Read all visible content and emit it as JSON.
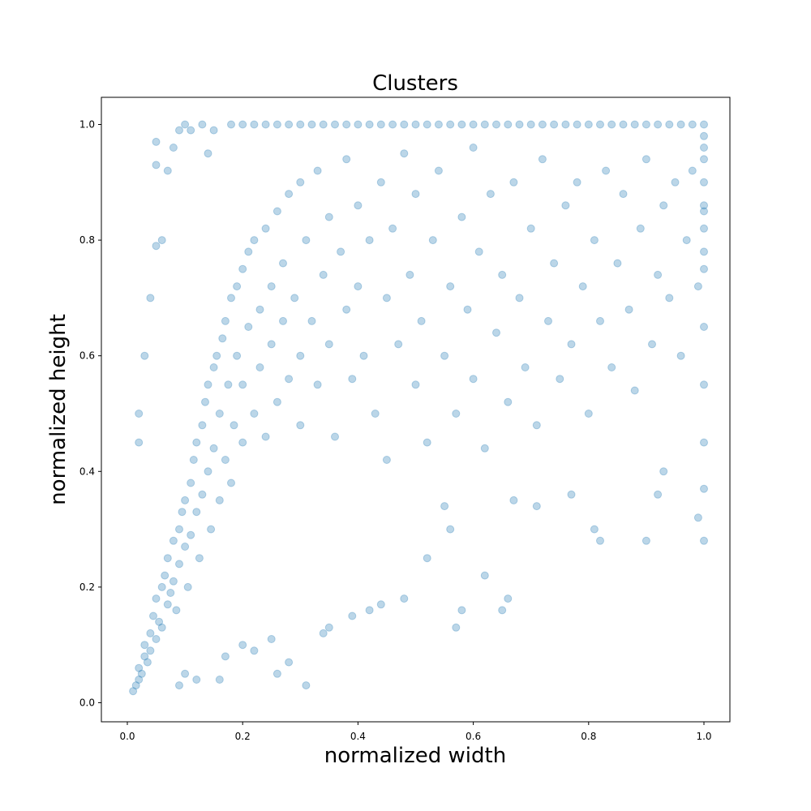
{
  "chart_data": {
    "type": "scatter",
    "title": "Clusters",
    "xlabel": "normalized width",
    "ylabel": "normalized height",
    "xlim": [
      -0.045,
      1.045
    ],
    "ylim": [
      -0.033,
      1.047
    ],
    "xticks": [
      0.0,
      0.2,
      0.4,
      0.6,
      0.8,
      1.0
    ],
    "yticks": [
      0.0,
      0.2,
      0.4,
      0.6,
      0.8,
      1.0
    ],
    "xtick_labels": [
      "0.0",
      "0.2",
      "0.4",
      "0.6",
      "0.8",
      "1.0"
    ],
    "ytick_labels": [
      "0.0",
      "0.2",
      "0.4",
      "0.6",
      "0.8",
      "1.0"
    ],
    "grid": false,
    "marker_color": "#1f77b4",
    "marker_alpha": 0.3,
    "series": [
      {
        "points": [
          [
            0.01,
            0.02
          ],
          [
            0.015,
            0.03
          ],
          [
            0.02,
            0.04
          ],
          [
            0.02,
            0.06
          ],
          [
            0.025,
            0.05
          ],
          [
            0.03,
            0.08
          ],
          [
            0.03,
            0.1
          ],
          [
            0.035,
            0.07
          ],
          [
            0.04,
            0.12
          ],
          [
            0.04,
            0.09
          ],
          [
            0.045,
            0.15
          ],
          [
            0.05,
            0.11
          ],
          [
            0.05,
            0.18
          ],
          [
            0.055,
            0.14
          ],
          [
            0.06,
            0.2
          ],
          [
            0.06,
            0.13
          ],
          [
            0.065,
            0.22
          ],
          [
            0.07,
            0.17
          ],
          [
            0.07,
            0.25
          ],
          [
            0.075,
            0.19
          ],
          [
            0.08,
            0.28
          ],
          [
            0.08,
            0.21
          ],
          [
            0.085,
            0.16
          ],
          [
            0.09,
            0.3
          ],
          [
            0.09,
            0.24
          ],
          [
            0.095,
            0.33
          ],
          [
            0.1,
            0.27
          ],
          [
            0.1,
            0.35
          ],
          [
            0.105,
            0.2
          ],
          [
            0.11,
            0.38
          ],
          [
            0.11,
            0.29
          ],
          [
            0.115,
            0.42
          ],
          [
            0.12,
            0.33
          ],
          [
            0.12,
            0.45
          ],
          [
            0.125,
            0.25
          ],
          [
            0.13,
            0.48
          ],
          [
            0.13,
            0.36
          ],
          [
            0.135,
            0.52
          ],
          [
            0.14,
            0.4
          ],
          [
            0.14,
            0.55
          ],
          [
            0.145,
            0.3
          ],
          [
            0.15,
            0.58
          ],
          [
            0.15,
            0.44
          ],
          [
            0.155,
            0.6
          ],
          [
            0.16,
            0.35
          ],
          [
            0.16,
            0.5
          ],
          [
            0.165,
            0.63
          ],
          [
            0.17,
            0.42
          ],
          [
            0.17,
            0.66
          ],
          [
            0.175,
            0.55
          ],
          [
            0.18,
            0.7
          ],
          [
            0.18,
            0.38
          ],
          [
            0.185,
            0.48
          ],
          [
            0.19,
            0.72
          ],
          [
            0.19,
            0.6
          ],
          [
            0.2,
            0.75
          ],
          [
            0.2,
            0.45
          ],
          [
            0.2,
            0.55
          ],
          [
            0.21,
            0.78
          ],
          [
            0.21,
            0.65
          ],
          [
            0.22,
            0.5
          ],
          [
            0.22,
            0.8
          ],
          [
            0.23,
            0.68
          ],
          [
            0.23,
            0.58
          ],
          [
            0.24,
            0.82
          ],
          [
            0.24,
            0.46
          ],
          [
            0.25,
            0.72
          ],
          [
            0.25,
            0.62
          ],
          [
            0.26,
            0.85
          ],
          [
            0.26,
            0.52
          ],
          [
            0.27,
            0.76
          ],
          [
            0.27,
            0.66
          ],
          [
            0.28,
            0.88
          ],
          [
            0.28,
            0.56
          ],
          [
            0.29,
            0.7
          ],
          [
            0.3,
            0.9
          ],
          [
            0.3,
            0.6
          ],
          [
            0.3,
            0.48
          ],
          [
            0.31,
            0.8
          ],
          [
            0.32,
            0.66
          ],
          [
            0.33,
            0.92
          ],
          [
            0.33,
            0.55
          ],
          [
            0.34,
            0.74
          ],
          [
            0.35,
            0.84
          ],
          [
            0.35,
            0.62
          ],
          [
            0.36,
            0.46
          ],
          [
            0.37,
            0.78
          ],
          [
            0.38,
            0.94
          ],
          [
            0.38,
            0.68
          ],
          [
            0.39,
            0.56
          ],
          [
            0.4,
            0.86
          ],
          [
            0.4,
            0.72
          ],
          [
            0.41,
            0.6
          ],
          [
            0.42,
            0.8
          ],
          [
            0.43,
            0.5
          ],
          [
            0.44,
            0.9
          ],
          [
            0.45,
            0.7
          ],
          [
            0.45,
            0.42
          ],
          [
            0.46,
            0.82
          ],
          [
            0.47,
            0.62
          ],
          [
            0.48,
            0.95
          ],
          [
            0.49,
            0.74
          ],
          [
            0.5,
            0.55
          ],
          [
            0.5,
            0.88
          ],
          [
            0.51,
            0.66
          ],
          [
            0.52,
            0.45
          ],
          [
            0.53,
            0.8
          ],
          [
            0.54,
            0.92
          ],
          [
            0.55,
            0.6
          ],
          [
            0.56,
            0.72
          ],
          [
            0.57,
            0.5
          ],
          [
            0.58,
            0.84
          ],
          [
            0.59,
            0.68
          ],
          [
            0.6,
            0.96
          ],
          [
            0.6,
            0.56
          ],
          [
            0.61,
            0.78
          ],
          [
            0.62,
            0.44
          ],
          [
            0.63,
            0.88
          ],
          [
            0.64,
            0.64
          ],
          [
            0.65,
            0.74
          ],
          [
            0.66,
            0.52
          ],
          [
            0.67,
            0.9
          ],
          [
            0.68,
            0.7
          ],
          [
            0.69,
            0.58
          ],
          [
            0.7,
            0.82
          ],
          [
            0.71,
            0.48
          ],
          [
            0.72,
            0.94
          ],
          [
            0.73,
            0.66
          ],
          [
            0.74,
            0.76
          ],
          [
            0.75,
            0.56
          ],
          [
            0.76,
            0.86
          ],
          [
            0.77,
            0.62
          ],
          [
            0.78,
            0.9
          ],
          [
            0.79,
            0.72
          ],
          [
            0.8,
            0.5
          ],
          [
            0.81,
            0.8
          ],
          [
            0.82,
            0.66
          ],
          [
            0.83,
            0.92
          ],
          [
            0.84,
            0.58
          ],
          [
            0.85,
            0.76
          ],
          [
            0.86,
            0.88
          ],
          [
            0.87,
            0.68
          ],
          [
            0.88,
            0.54
          ],
          [
            0.89,
            0.82
          ],
          [
            0.9,
            0.94
          ],
          [
            0.91,
            0.62
          ],
          [
            0.92,
            0.74
          ],
          [
            0.93,
            0.86
          ],
          [
            0.94,
            0.7
          ],
          [
            0.95,
            0.9
          ],
          [
            0.96,
            0.6
          ],
          [
            0.97,
            0.8
          ],
          [
            0.98,
            0.92
          ],
          [
            0.99,
            0.72
          ],
          [
            1.0,
            0.96
          ],
          [
            1.0,
            0.85
          ],
          [
            1.0,
            0.75
          ],
          [
            1.0,
            0.65
          ],
          [
            1.0,
            0.55
          ],
          [
            1.0,
            0.45
          ],
          [
            1.0,
            0.37
          ],
          [
            1.0,
            0.28
          ],
          [
            0.99,
            0.32
          ],
          [
            0.9,
            0.28
          ],
          [
            0.92,
            0.36
          ],
          [
            0.93,
            0.4
          ],
          [
            0.82,
            0.28
          ],
          [
            0.81,
            0.3
          ],
          [
            0.77,
            0.36
          ],
          [
            0.71,
            0.34
          ],
          [
            0.67,
            0.35
          ],
          [
            0.66,
            0.18
          ],
          [
            0.65,
            0.16
          ],
          [
            0.62,
            0.22
          ],
          [
            0.58,
            0.16
          ],
          [
            0.57,
            0.13
          ],
          [
            0.56,
            0.3
          ],
          [
            0.55,
            0.34
          ],
          [
            0.52,
            0.25
          ],
          [
            0.48,
            0.18
          ],
          [
            0.44,
            0.17
          ],
          [
            0.42,
            0.16
          ],
          [
            0.39,
            0.15
          ],
          [
            0.35,
            0.13
          ],
          [
            0.34,
            0.12
          ],
          [
            0.31,
            0.03
          ],
          [
            0.28,
            0.07
          ],
          [
            0.26,
            0.05
          ],
          [
            0.25,
            0.11
          ],
          [
            0.22,
            0.09
          ],
          [
            0.2,
            0.1
          ],
          [
            0.17,
            0.08
          ],
          [
            0.16,
            0.04
          ],
          [
            0.12,
            0.04
          ],
          [
            0.1,
            0.05
          ],
          [
            0.09,
            0.03
          ],
          [
            0.05,
            0.93
          ],
          [
            0.05,
            0.97
          ],
          [
            0.07,
            0.92
          ],
          [
            0.08,
            0.96
          ],
          [
            0.09,
            0.99
          ],
          [
            0.1,
            1.0
          ],
          [
            0.11,
            0.99
          ],
          [
            0.13,
            1.0
          ],
          [
            0.14,
            0.95
          ],
          [
            0.15,
            0.99
          ],
          [
            0.06,
            0.8
          ],
          [
            0.05,
            0.79
          ],
          [
            0.04,
            0.7
          ],
          [
            0.03,
            0.6
          ],
          [
            0.02,
            0.5
          ],
          [
            0.02,
            0.45
          ],
          [
            0.18,
            1.0
          ],
          [
            0.2,
            1.0
          ],
          [
            0.22,
            1.0
          ],
          [
            0.24,
            1.0
          ],
          [
            0.26,
            1.0
          ],
          [
            0.28,
            1.0
          ],
          [
            0.3,
            1.0
          ],
          [
            0.32,
            1.0
          ],
          [
            0.34,
            1.0
          ],
          [
            0.36,
            1.0
          ],
          [
            0.38,
            1.0
          ],
          [
            0.4,
            1.0
          ],
          [
            0.42,
            1.0
          ],
          [
            0.44,
            1.0
          ],
          [
            0.46,
            1.0
          ],
          [
            0.48,
            1.0
          ],
          [
            0.5,
            1.0
          ],
          [
            0.52,
            1.0
          ],
          [
            0.54,
            1.0
          ],
          [
            0.56,
            1.0
          ],
          [
            0.58,
            1.0
          ],
          [
            0.6,
            1.0
          ],
          [
            0.62,
            1.0
          ],
          [
            0.64,
            1.0
          ],
          [
            0.66,
            1.0
          ],
          [
            0.68,
            1.0
          ],
          [
            0.7,
            1.0
          ],
          [
            0.72,
            1.0
          ],
          [
            0.74,
            1.0
          ],
          [
            0.76,
            1.0
          ],
          [
            0.78,
            1.0
          ],
          [
            0.8,
            1.0
          ],
          [
            0.82,
            1.0
          ],
          [
            0.84,
            1.0
          ],
          [
            0.86,
            1.0
          ],
          [
            0.88,
            1.0
          ],
          [
            0.9,
            1.0
          ],
          [
            0.92,
            1.0
          ],
          [
            0.94,
            1.0
          ],
          [
            0.96,
            1.0
          ],
          [
            0.98,
            1.0
          ],
          [
            1.0,
            1.0
          ],
          [
            1.0,
            0.98
          ],
          [
            1.0,
            0.94
          ],
          [
            1.0,
            0.9
          ],
          [
            1.0,
            0.86
          ],
          [
            1.0,
            0.82
          ],
          [
            1.0,
            0.78
          ]
        ]
      }
    ]
  }
}
